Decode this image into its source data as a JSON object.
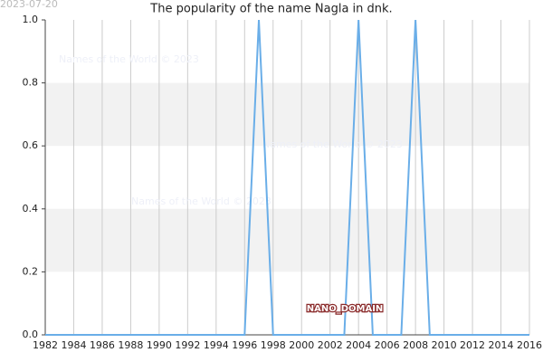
{
  "chart_data": {
    "type": "line",
    "title": "The popularity of the name Nagla in dnk.",
    "date": "2023-07-20",
    "watermarks": [
      "Names of the World © 2023",
      "Names of the World © 2023",
      "Names of the World © 2023"
    ],
    "badge": "NANO_DOMAIN",
    "x": [
      1982,
      1983,
      1984,
      1985,
      1986,
      1987,
      1988,
      1989,
      1990,
      1991,
      1992,
      1993,
      1994,
      1995,
      1996,
      1997,
      1998,
      1999,
      2000,
      2001,
      2002,
      2003,
      2004,
      2005,
      2006,
      2007,
      2008,
      2009,
      2010,
      2011,
      2012,
      2013,
      2014,
      2015,
      2016
    ],
    "series": [
      {
        "color": "#6aaee8",
        "values": [
          0,
          0,
          0,
          0,
          0,
          0,
          0,
          0,
          0,
          0,
          0,
          0,
          0,
          0,
          0,
          1,
          0,
          0,
          0,
          0,
          0,
          0,
          1,
          0,
          0,
          0,
          1,
          0,
          0,
          0,
          0,
          0,
          0,
          0,
          0
        ]
      }
    ],
    "xlim": [
      1982,
      2016
    ],
    "xticks": [
      1982,
      1984,
      1986,
      1988,
      1990,
      1992,
      1994,
      1996,
      1998,
      2000,
      2002,
      2004,
      2006,
      2008,
      2010,
      2012,
      2014,
      2016
    ],
    "ylim": [
      0,
      1
    ],
    "yticks": [
      {
        "value": 0,
        "label": "0.0"
      },
      0.2,
      0.4,
      0.6,
      0.8,
      {
        "value": 1,
        "label": "1.0"
      }
    ],
    "grid": true,
    "bands": true
  }
}
